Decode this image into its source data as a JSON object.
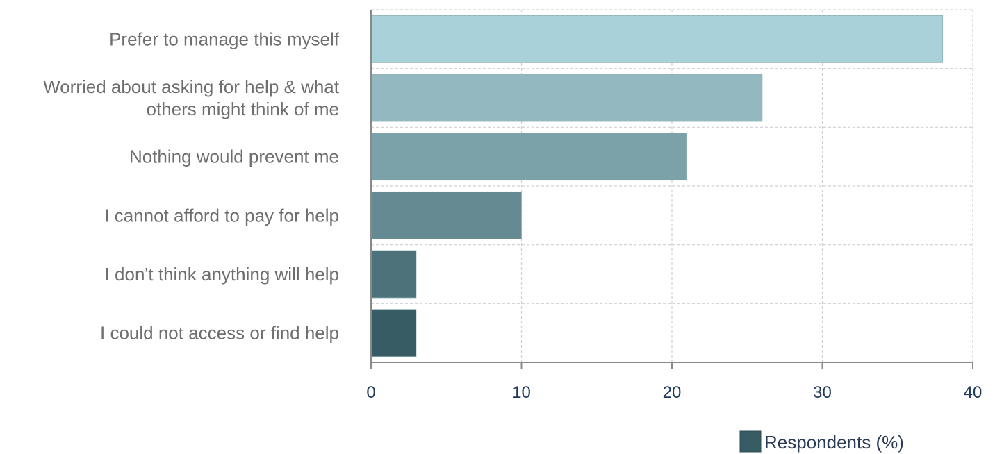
{
  "chart_data": {
    "type": "bar",
    "orientation": "horizontal",
    "categories": [
      [
        "Prefer to manage this myself"
      ],
      [
        "Worried about asking for help & what",
        "others might think of me"
      ],
      [
        "Nothing would prevent me"
      ],
      [
        "I cannot afford to pay for help"
      ],
      [
        "I don't think anything will help"
      ],
      [
        "I could not access or find help"
      ]
    ],
    "series": [
      {
        "name": "Respondents (%)",
        "values": [
          38,
          26,
          21,
          10,
          3,
          3
        ]
      }
    ],
    "bar_colors": [
      "#a9d1d9",
      "#93b8bf",
      "#7ba2a8",
      "#658a91",
      "#4e7279",
      "#385c64"
    ],
    "xlim": [
      0,
      40
    ],
    "xticks": [
      0,
      10,
      20,
      30,
      40
    ],
    "grid": true,
    "legend_position": "bottom-right",
    "legend_color": "#385c64"
  }
}
